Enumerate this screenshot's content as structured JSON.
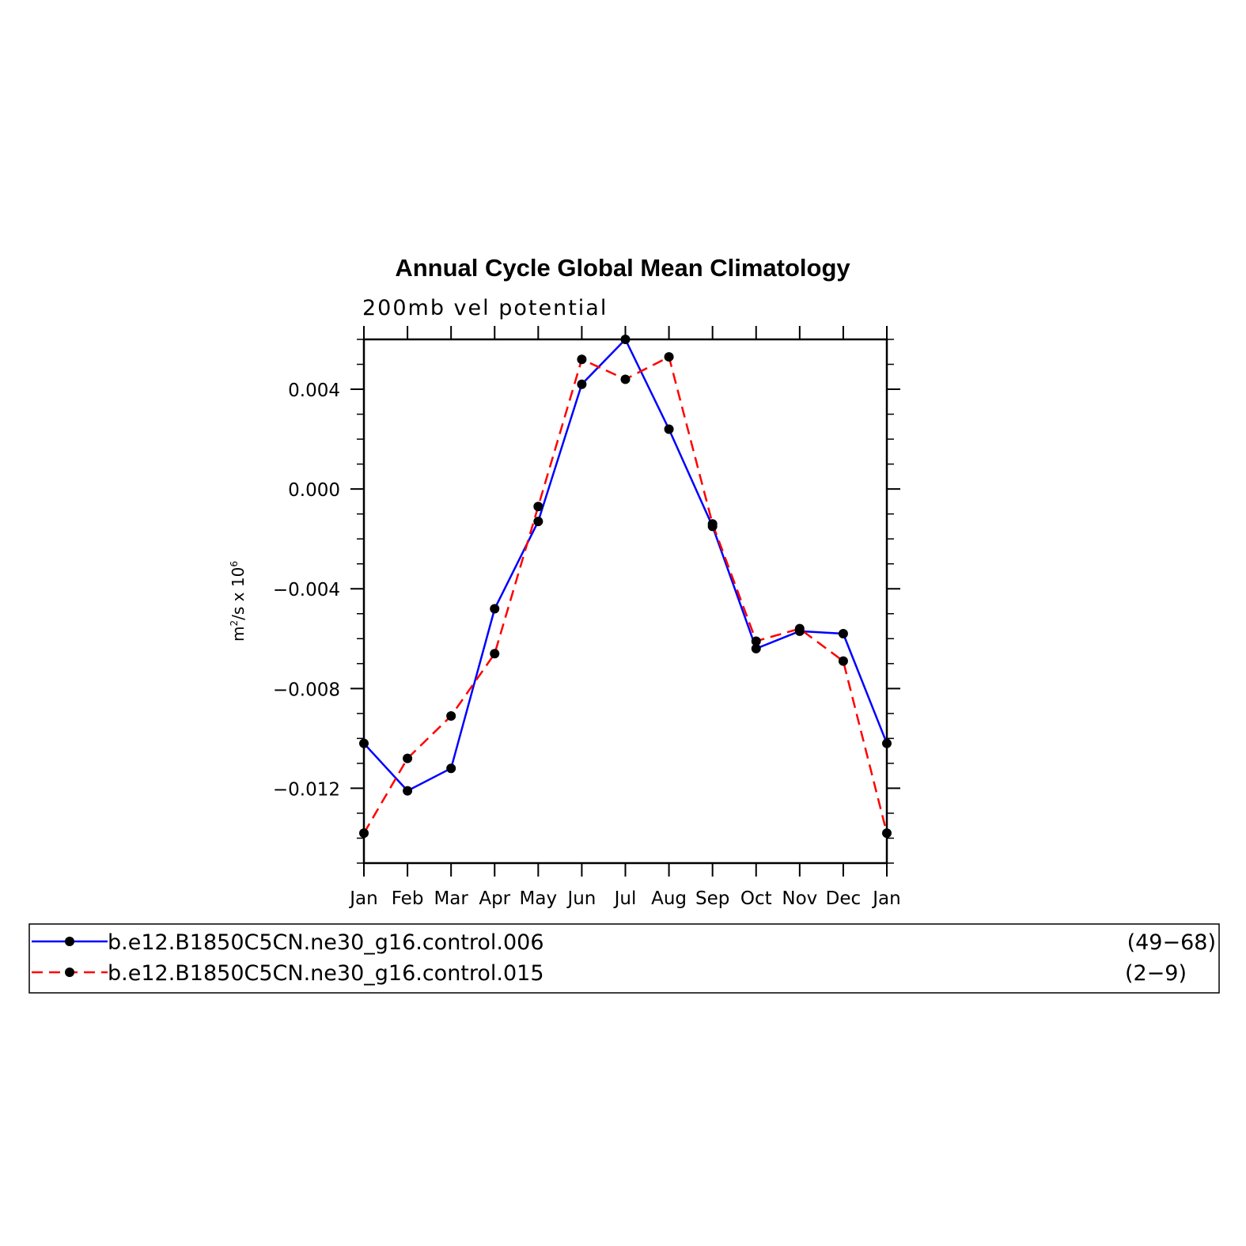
{
  "chart_data": {
    "type": "line",
    "title": "Annual Cycle Global Mean Climatology",
    "subtitle": "200mb vel potential",
    "ylabel_main": "m",
    "ylabel_sup1": "2",
    "ylabel_mid": "/s x 10",
    "ylabel_sup2": "6",
    "categories": [
      "Jan",
      "Feb",
      "Mar",
      "Apr",
      "May",
      "Jun",
      "Jul",
      "Aug",
      "Sep",
      "Oct",
      "Nov",
      "Dec",
      "Jan"
    ],
    "yticks": [
      "0.004",
      "0.000",
      "−0.004",
      "−0.008",
      "−0.012"
    ],
    "ytick_values": [
      0.004,
      0.0,
      -0.004,
      -0.008,
      -0.012
    ],
    "ylim": [
      -0.015,
      0.006
    ],
    "series": [
      {
        "name": "b.e12.B1850C5CN.ne30_g16.control.006",
        "years": "(49−68)",
        "color": "#0000ff",
        "dash": "solid",
        "values": [
          -0.0102,
          -0.0121,
          -0.0112,
          -0.0048,
          -0.0013,
          0.0042,
          0.006,
          0.0024,
          -0.0015,
          -0.0064,
          -0.0057,
          -0.0058,
          -0.0102
        ]
      },
      {
        "name": "b.e12.B1850C5CN.ne30_g16.control.015",
        "years": "(2−9)",
        "color": "#ff0000",
        "dash": "dashed",
        "values": [
          -0.0138,
          -0.0108,
          -0.0091,
          -0.0066,
          -0.0007,
          0.0052,
          0.0044,
          0.0053,
          -0.0014,
          -0.0061,
          -0.0056,
          -0.0069,
          -0.0138
        ]
      }
    ]
  }
}
